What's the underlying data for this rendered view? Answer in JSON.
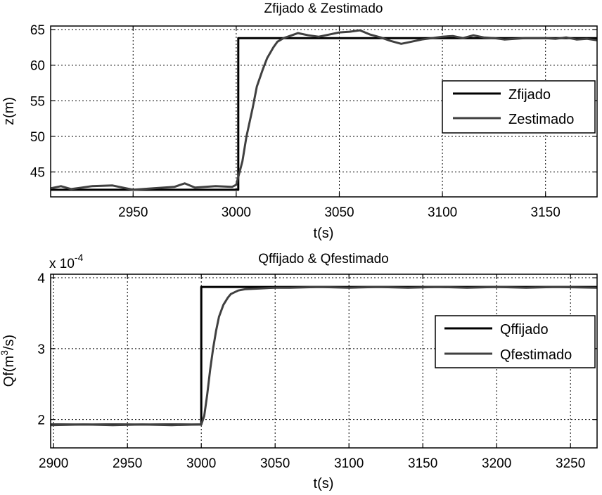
{
  "chart_data": [
    {
      "type": "line",
      "title": "Zfijado & Zestimado",
      "xlabel": "t(s)",
      "ylabel": "z(m)",
      "xlim": [
        2910,
        3175
      ],
      "ylim": [
        41.5,
        65.5
      ],
      "xticks": [
        2950,
        3000,
        3050,
        3100,
        3150
      ],
      "yticks": [
        45,
        50,
        55,
        60,
        65
      ],
      "grid": true,
      "legend_position": "right",
      "series": [
        {
          "name": "Zfijado",
          "color": "#000000",
          "x": [
            2910,
            3000,
            3000,
            3001,
            3001,
            3175
          ],
          "y": [
            42.5,
            42.5,
            42.5,
            42.5,
            63.8,
            63.8
          ]
        },
        {
          "name": "Zestimado",
          "color": "#404040",
          "x": [
            2910,
            2915,
            2920,
            2925,
            2930,
            2940,
            2950,
            2960,
            2970,
            2975,
            2980,
            2990,
            2998,
            3000,
            3003,
            3005,
            3008,
            3010,
            3013,
            3015,
            3018,
            3020,
            3023,
            3025,
            3030,
            3035,
            3040,
            3045,
            3050,
            3055,
            3060,
            3065,
            3070,
            3075,
            3080,
            3085,
            3090,
            3095,
            3100,
            3105,
            3110,
            3115,
            3120,
            3125,
            3130,
            3135,
            3140,
            3145,
            3150,
            3155,
            3160,
            3165,
            3170,
            3175
          ],
          "y": [
            42.7,
            43.0,
            42.6,
            42.8,
            43.0,
            43.1,
            42.5,
            42.7,
            42.9,
            43.4,
            42.8,
            43.0,
            42.9,
            43.2,
            46.5,
            50.0,
            54.0,
            57.0,
            59.5,
            61.0,
            62.5,
            63.3,
            63.8,
            64.0,
            64.5,
            64.2,
            64.0,
            64.3,
            64.6,
            64.7,
            64.9,
            64.3,
            63.9,
            63.4,
            63.0,
            63.3,
            63.6,
            63.8,
            64.0,
            64.1,
            63.8,
            64.2,
            63.9,
            63.8,
            63.6,
            63.7,
            63.8,
            63.8,
            63.8,
            63.7,
            63.9,
            63.6,
            63.7,
            63.5
          ]
        }
      ]
    },
    {
      "type": "line",
      "title": "Qffijado & Qfestimado",
      "xlabel": "t(s)",
      "ylabel_main": "Qf(m",
      "ylabel_sup": "3",
      "ylabel_end": "/s)",
      "exponent_prefix": "x 10",
      "exponent_power": "-4",
      "xlim": [
        2898,
        3268
      ],
      "ylim": [
        1.6,
        4.05
      ],
      "xticks": [
        2900,
        2950,
        3000,
        3050,
        3100,
        3150,
        3200,
        3250
      ],
      "yticks": [
        2,
        3,
        4
      ],
      "grid": true,
      "legend_position": "right",
      "series": [
        {
          "name": "Qffijado",
          "color": "#000000",
          "x": [
            2898,
            3000,
            3000,
            3268
          ],
          "y": [
            1.93,
            1.93,
            3.87,
            3.87
          ]
        },
        {
          "name": "Qfestimado",
          "color": "#404040",
          "x": [
            2898,
            2920,
            2940,
            2960,
            2980,
            2998,
            3000,
            3002,
            3004,
            3006,
            3008,
            3010,
            3012,
            3015,
            3018,
            3020,
            3025,
            3030,
            3040,
            3050,
            3060,
            3080,
            3100,
            3120,
            3140,
            3160,
            3180,
            3200,
            3220,
            3240,
            3268
          ],
          "y": [
            1.92,
            1.93,
            1.92,
            1.93,
            1.92,
            1.93,
            1.93,
            2.05,
            2.35,
            2.7,
            3.0,
            3.25,
            3.45,
            3.62,
            3.72,
            3.77,
            3.82,
            3.84,
            3.85,
            3.86,
            3.86,
            3.87,
            3.86,
            3.87,
            3.86,
            3.87,
            3.86,
            3.87,
            3.86,
            3.87,
            3.86
          ]
        }
      ]
    }
  ]
}
